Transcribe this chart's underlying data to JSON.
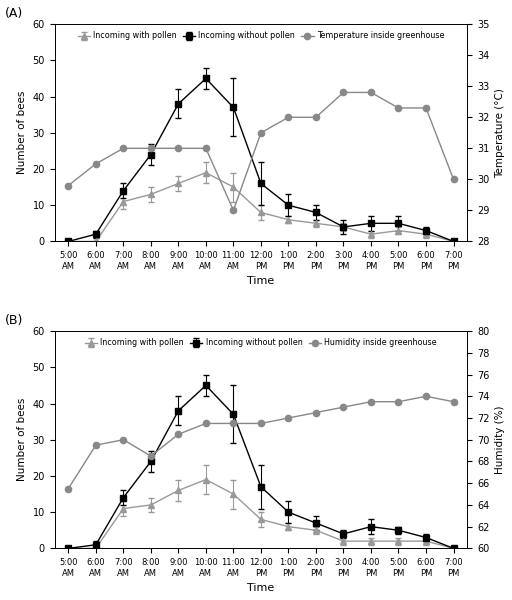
{
  "time_labels": [
    "5:00\nAM",
    "6:00\nAM",
    "7:00\nAM",
    "8:00\nAM",
    "9:00\nAM",
    "10:00\nAM",
    "11:00\nAM",
    "12:00\nPM",
    "1:00\nPM",
    "2:00\nPM",
    "3:00\nPM",
    "4:00\nPM",
    "5:00\nPM",
    "6:00\nPM",
    "7:00\nPM"
  ],
  "x": [
    0,
    1,
    2,
    3,
    4,
    5,
    6,
    7,
    8,
    9,
    10,
    11,
    12,
    13,
    14
  ],
  "A": {
    "label": "(A)",
    "with_pollen": [
      0,
      0,
      11,
      13,
      16,
      19,
      15,
      8,
      6,
      5,
      4,
      2,
      3,
      2,
      0
    ],
    "with_pollen_err": [
      0,
      0,
      2,
      2,
      2,
      3,
      4,
      2,
      1,
      1,
      1,
      1,
      1,
      1,
      0
    ],
    "without_pollen": [
      0,
      2,
      14,
      24,
      38,
      45,
      37,
      16,
      10,
      8,
      4,
      5,
      5,
      3,
      0
    ],
    "without_pollen_err": [
      0,
      1,
      2,
      3,
      4,
      3,
      8,
      6,
      3,
      2,
      2,
      2,
      2,
      1,
      0
    ],
    "temp": [
      29.8,
      30.5,
      31.0,
      31.0,
      31.0,
      31.0,
      29.0,
      31.5,
      32.0,
      32.0,
      32.8,
      32.8,
      32.3,
      32.3,
      30.0
    ],
    "secondary_label": "Temperature (°C)",
    "secondary_ylim": [
      28,
      35
    ],
    "secondary_yticks": [
      28,
      29,
      30,
      31,
      32,
      33,
      34,
      35
    ],
    "legend_label": "Temperature inside greenhouse"
  },
  "B": {
    "label": "(B)",
    "with_pollen": [
      0,
      0,
      11,
      12,
      16,
      19,
      15,
      8,
      6,
      5,
      2,
      2,
      2,
      2,
      0
    ],
    "with_pollen_err": [
      0,
      0,
      2,
      2,
      3,
      4,
      4,
      2,
      1,
      1,
      1,
      1,
      1,
      1,
      0
    ],
    "without_pollen": [
      0,
      1,
      14,
      24,
      38,
      45,
      37,
      17,
      10,
      7,
      4,
      6,
      5,
      3,
      0
    ],
    "without_pollen_err": [
      0,
      1,
      2,
      3,
      4,
      3,
      8,
      6,
      3,
      2,
      1,
      2,
      1,
      1,
      0
    ],
    "hum": [
      65.5,
      69.5,
      70.0,
      68.5,
      70.5,
      71.5,
      71.5,
      71.5,
      72.0,
      72.5,
      73.0,
      73.5,
      73.5,
      74.0,
      73.5
    ],
    "secondary_label": "Humidity (%)",
    "secondary_ylim": [
      60,
      80
    ],
    "secondary_yticks": [
      60,
      62,
      64,
      66,
      68,
      70,
      72,
      74,
      76,
      78,
      80
    ],
    "legend_label": "Humidity inside greenhouse"
  },
  "primary_ylim": [
    0,
    60
  ],
  "primary_yticks": [
    0,
    10,
    20,
    30,
    40,
    50,
    60
  ],
  "ylabel_left": "Number of bees",
  "xlabel": "Time",
  "color_with_pollen": "#999999",
  "color_without_pollen": "#000000",
  "color_secondary": "#888888",
  "marker_with_pollen": "^",
  "marker_without_pollen": "s",
  "marker_secondary": "o",
  "linewidth": 1.0,
  "markersize": 4.5
}
